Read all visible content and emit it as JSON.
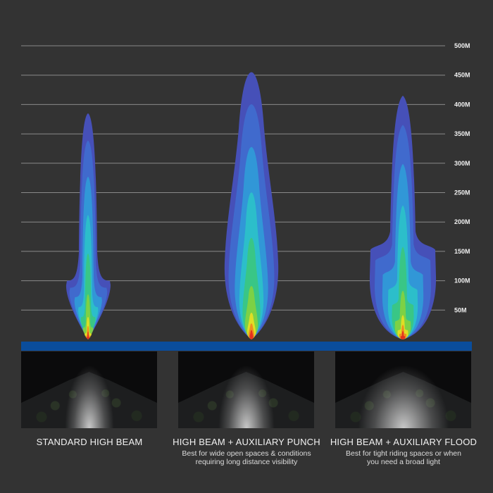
{
  "chart_data": {
    "type": "beam-pattern",
    "y_unit": "M",
    "ylim": [
      0,
      500
    ],
    "y_ticks": [
      "50M",
      "100M",
      "150M",
      "200M",
      "250M",
      "300M",
      "350M",
      "400M",
      "450M",
      "500M"
    ],
    "y_tick_values": [
      50,
      100,
      150,
      200,
      250,
      300,
      350,
      400,
      450,
      500
    ],
    "grid": true,
    "series": [
      {
        "name": "STANDARD HIGH BEAM",
        "max_distance_m": 385,
        "wide_section_m": 100
      },
      {
        "name": "HIGH BEAM + AUXILIARY PUNCH",
        "max_distance_m": 455,
        "wide_section_m": 150,
        "description": [
          "Best for wide open spaces & conditions",
          "requiring long distance visibility"
        ]
      },
      {
        "name": "HIGH BEAM + AUXILIARY FLOOD",
        "max_distance_m": 415,
        "wide_section_m": 160,
        "description": [
          "Best for tight riding spaces or when",
          "you need a broad light"
        ]
      }
    ],
    "colors": {
      "background": "#333333",
      "ground_bar": "#0a4d9c",
      "grid": "#8a8a8a",
      "beam_scale": [
        "#4650b8",
        "#3f6fd0",
        "#2f9fd8",
        "#2cc4c8",
        "#3cc87a",
        "#8ad23a",
        "#f0e020",
        "#f08020",
        "#e02020"
      ]
    }
  }
}
